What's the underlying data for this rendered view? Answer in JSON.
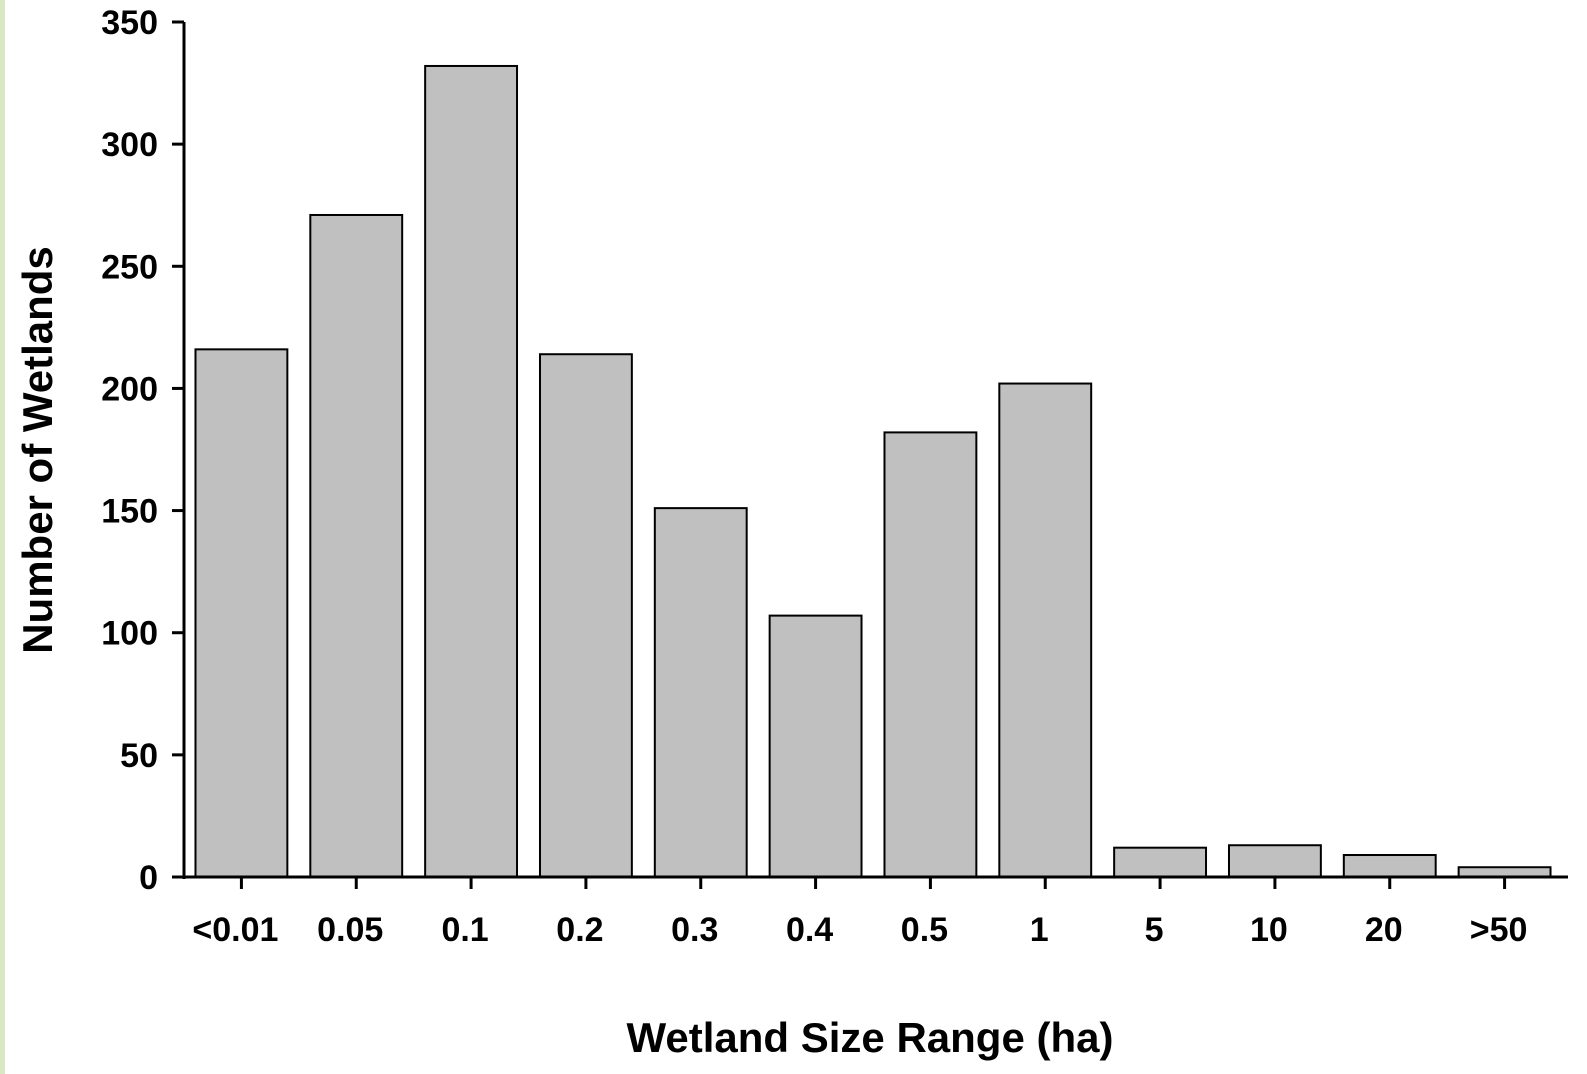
{
  "chart_data": {
    "type": "bar",
    "xlabel": "Wetland Size Range (ha)",
    "ylabel": "Number of Wetlands",
    "categories": [
      "<0.01",
      "0.05",
      "0.1",
      "0.2",
      "0.3",
      "0.4",
      "0.5",
      "1",
      "5",
      "10",
      "20",
      ">50"
    ],
    "values": [
      216,
      271,
      332,
      214,
      151,
      107,
      182,
      202,
      12,
      13,
      9,
      4
    ],
    "ylim": [
      0,
      350
    ],
    "yticks": [
      0,
      50,
      100,
      150,
      200,
      250,
      300,
      350
    ],
    "grid": false,
    "legend": "none",
    "colors": {
      "bar_fill": "#c0c0c0",
      "bar_stroke": "#000000",
      "axis": "#000000",
      "strip": "#d9e8c0"
    }
  }
}
